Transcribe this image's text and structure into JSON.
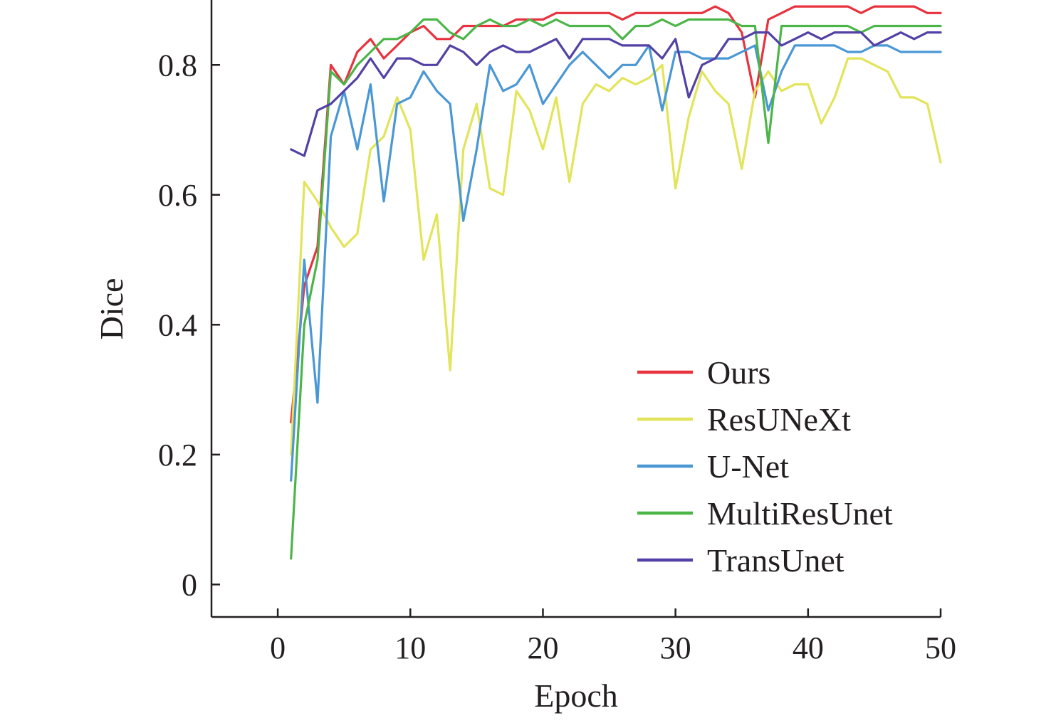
{
  "chart_data": {
    "type": "line",
    "title": "",
    "xlabel": "Epoch",
    "ylabel": "Dice",
    "xlim": [
      -5,
      50
    ],
    "ylim": [
      -0.05,
      0.9
    ],
    "xticks": [
      0,
      10,
      20,
      30,
      40,
      50
    ],
    "xtick_labels": [
      "0",
      "10",
      "20",
      "30",
      "40",
      "50"
    ],
    "yticks": [
      0,
      0.2,
      0.4,
      0.6,
      0.8
    ],
    "ytick_labels": [
      "0",
      "0.2",
      "0.4",
      "0.6",
      "0.8"
    ],
    "grid": false,
    "legend_position": "bottom-right",
    "x": [
      1,
      2,
      3,
      4,
      5,
      6,
      7,
      8,
      9,
      10,
      11,
      12,
      13,
      14,
      15,
      16,
      17,
      18,
      19,
      20,
      21,
      22,
      23,
      24,
      25,
      26,
      27,
      28,
      29,
      30,
      31,
      32,
      33,
      34,
      35,
      36,
      37,
      38,
      39,
      40,
      41,
      42,
      43,
      44,
      45,
      46,
      47,
      48,
      49,
      50
    ],
    "series": [
      {
        "name": "Ours",
        "color": "#e8323e",
        "values": [
          0.25,
          0.46,
          0.52,
          0.8,
          0.77,
          0.82,
          0.84,
          0.81,
          0.83,
          0.85,
          0.86,
          0.84,
          0.84,
          0.86,
          0.86,
          0.86,
          0.86,
          0.87,
          0.87,
          0.87,
          0.88,
          0.88,
          0.88,
          0.88,
          0.88,
          0.87,
          0.88,
          0.88,
          0.88,
          0.88,
          0.88,
          0.88,
          0.89,
          0.88,
          0.85,
          0.75,
          0.87,
          0.88,
          0.89,
          0.89,
          0.89,
          0.89,
          0.89,
          0.88,
          0.89,
          0.89,
          0.89,
          0.89,
          0.88,
          0.88
        ]
      },
      {
        "name": "ResUNeXt",
        "color": "#e2e45a",
        "values": [
          0.2,
          0.62,
          0.59,
          0.55,
          0.52,
          0.54,
          0.67,
          0.69,
          0.75,
          0.7,
          0.5,
          0.57,
          0.33,
          0.67,
          0.74,
          0.61,
          0.6,
          0.76,
          0.73,
          0.67,
          0.75,
          0.62,
          0.74,
          0.77,
          0.76,
          0.78,
          0.77,
          0.78,
          0.8,
          0.61,
          0.72,
          0.79,
          0.76,
          0.74,
          0.64,
          0.76,
          0.79,
          0.76,
          0.77,
          0.77,
          0.71,
          0.75,
          0.81,
          0.81,
          0.8,
          0.79,
          0.75,
          0.75,
          0.74,
          0.65
        ]
      },
      {
        "name": "U-Net",
        "color": "#4a97d6",
        "values": [
          0.16,
          0.5,
          0.28,
          0.69,
          0.76,
          0.67,
          0.77,
          0.59,
          0.74,
          0.75,
          0.79,
          0.76,
          0.74,
          0.56,
          0.67,
          0.8,
          0.76,
          0.77,
          0.8,
          0.74,
          0.77,
          0.8,
          0.82,
          0.8,
          0.78,
          0.8,
          0.8,
          0.83,
          0.73,
          0.82,
          0.82,
          0.81,
          0.81,
          0.81,
          0.82,
          0.83,
          0.73,
          0.79,
          0.83,
          0.83,
          0.83,
          0.83,
          0.82,
          0.82,
          0.83,
          0.83,
          0.82,
          0.82,
          0.82,
          0.82
        ]
      },
      {
        "name": "MultiResUnet",
        "color": "#4cb548",
        "values": [
          0.04,
          0.4,
          0.5,
          0.79,
          0.77,
          0.8,
          0.82,
          0.84,
          0.84,
          0.85,
          0.87,
          0.87,
          0.85,
          0.84,
          0.86,
          0.87,
          0.86,
          0.86,
          0.87,
          0.86,
          0.87,
          0.86,
          0.86,
          0.86,
          0.86,
          0.84,
          0.86,
          0.86,
          0.87,
          0.86,
          0.87,
          0.87,
          0.87,
          0.87,
          0.86,
          0.86,
          0.68,
          0.86,
          0.86,
          0.86,
          0.86,
          0.86,
          0.86,
          0.85,
          0.86,
          0.86,
          0.86,
          0.86,
          0.86,
          0.86
        ]
      },
      {
        "name": "TransUnet",
        "color": "#5341a5",
        "values": [
          0.67,
          0.66,
          0.73,
          0.74,
          0.76,
          0.78,
          0.81,
          0.78,
          0.81,
          0.81,
          0.8,
          0.8,
          0.83,
          0.82,
          0.8,
          0.82,
          0.83,
          0.82,
          0.82,
          0.83,
          0.84,
          0.81,
          0.84,
          0.84,
          0.84,
          0.83,
          0.83,
          0.83,
          0.81,
          0.84,
          0.75,
          0.8,
          0.81,
          0.84,
          0.84,
          0.85,
          0.85,
          0.83,
          0.84,
          0.85,
          0.84,
          0.85,
          0.85,
          0.85,
          0.83,
          0.84,
          0.85,
          0.84,
          0.85,
          0.85
        ]
      }
    ]
  }
}
